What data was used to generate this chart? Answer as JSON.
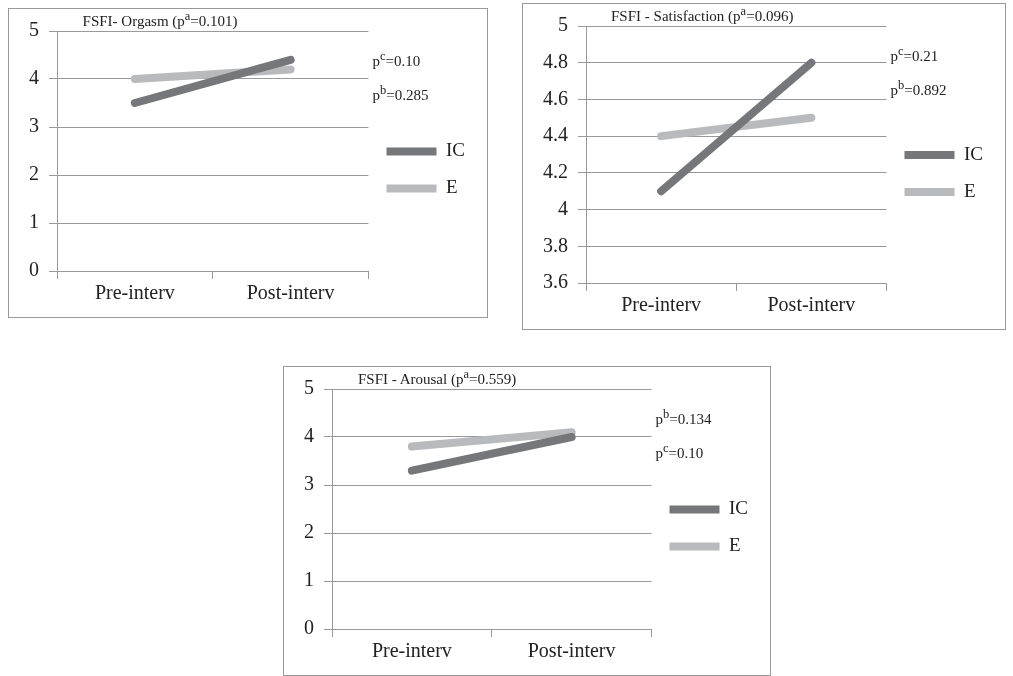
{
  "chart_data": [
    {
      "type": "line",
      "title": "FSFI- Orgasm (p$^{a}$=0.101)",
      "categories": [
        "Pre-interv",
        "Post-interv"
      ],
      "series": [
        {
          "name": "IC",
          "color": "#76777b",
          "values": [
            3.5,
            4.4
          ]
        },
        {
          "name": "E",
          "color": "#b9babd",
          "values": [
            4.0,
            4.2
          ]
        }
      ],
      "ylim": [
        0,
        5
      ],
      "yticks": [
        0,
        1,
        2,
        3,
        4,
        5
      ],
      "grid": "y",
      "legend": "right",
      "marker": "none",
      "annotations": [
        "p$^{c}$=0.10",
        "p$^{b}$=0.285"
      ]
    },
    {
      "type": "line",
      "title": "FSFI - Satisfaction (p$^{a}$=0.096)",
      "categories": [
        "Pre-interv",
        "Post-interv"
      ],
      "series": [
        {
          "name": "IC",
          "color": "#76777b",
          "values": [
            4.1,
            4.8
          ]
        },
        {
          "name": "E",
          "color": "#b9babd",
          "values": [
            4.4,
            4.5
          ]
        }
      ],
      "ylim": [
        3.6,
        5
      ],
      "yticks": [
        3.6,
        3.8,
        4,
        4.2,
        4.4,
        4.6,
        4.8,
        5
      ],
      "grid": "y",
      "legend": "right",
      "marker": "none",
      "annotations": [
        "p$^{c}$=0.21",
        "p$^{b}$=0.892"
      ]
    },
    {
      "type": "line",
      "title": "FSFI - Arousal (p$^{a}$=0.559)",
      "categories": [
        "Pre-interv",
        "Post-interv"
      ],
      "series": [
        {
          "name": "IC",
          "color": "#76777b",
          "values": [
            3.3,
            4.0
          ]
        },
        {
          "name": "E",
          "color": "#b9babd",
          "values": [
            3.8,
            4.1
          ]
        }
      ],
      "ylim": [
        0,
        5
      ],
      "yticks": [
        0,
        1,
        2,
        3,
        4,
        5
      ],
      "grid": "y",
      "legend": "right",
      "marker": "none",
      "annotations": [
        "p$^{b}$=0.134",
        "p$^{c}$=0.10"
      ]
    }
  ]
}
